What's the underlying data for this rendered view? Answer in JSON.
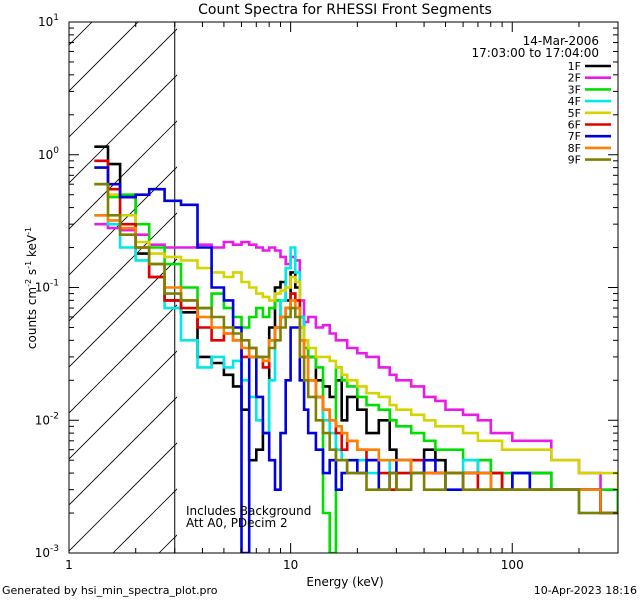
{
  "footer": {
    "generated": "Generated by hsi_min_spectra_plot.pro",
    "date": "10-Apr-2023 18:16"
  },
  "annotations": {
    "date": "14-Mar-2006",
    "time_range": "17:03:00 to 17:04:00",
    "background_note": "Includes Background",
    "atten_note": "Att A0, PDecim 2"
  },
  "chart_data": {
    "type": "line",
    "title": "Count Spectra for RHESSI Front Segments",
    "xlabel": "Energy (keV)",
    "ylabel": "counts cm-2 s-1 keV-1",
    "x_scale": "log",
    "y_scale": "log",
    "xlim": [
      1,
      300
    ],
    "ylim": [
      0.001,
      10
    ],
    "x_ticks": [
      1,
      10,
      100
    ],
    "y_ticks": [
      0.001,
      0.01,
      0.1,
      1,
      10
    ],
    "hatched_region": [
      1,
      3
    ],
    "legend_position": "top-right",
    "series": [
      {
        "name": "1F",
        "color": "#000000",
        "x": [
          1.3,
          1.5,
          1.7,
          2,
          2.3,
          2.7,
          3.2,
          3.8,
          4.4,
          5,
          5.5,
          6,
          6.5,
          7,
          7.5,
          8,
          8.5,
          9,
          9.5,
          10,
          10.5,
          11,
          11.5,
          12,
          13,
          14,
          15,
          16,
          17,
          18,
          20,
          22,
          25,
          28,
          30,
          35,
          40,
          45,
          50,
          60,
          70,
          80,
          90,
          100,
          120,
          150,
          180,
          200,
          250,
          300
        ],
        "y": [
          1.15,
          0.85,
          0.48,
          0.18,
          0.12,
          0.08,
          0.065,
          0.03,
          0.027,
          0.022,
          0.018,
          0.012,
          0.005,
          0.006,
          0.008,
          0.05,
          0.1,
          0.11,
          0.08,
          0.13,
          0.1,
          0.06,
          0.04,
          0.03,
          0.02,
          0.018,
          0.015,
          0.02,
          0.01,
          0.015,
          0.012,
          0.008,
          0.01,
          0.006,
          0.005,
          0.004,
          0.006,
          0.005,
          0.004,
          0.004,
          0.005,
          0.004,
          0.003,
          0.004,
          0.004,
          0.003,
          0.003,
          0.003,
          0.002,
          0.003
        ]
      },
      {
        "name": "2F",
        "color": "#e81ce8",
        "x": [
          1.3,
          1.5,
          1.7,
          2,
          2.3,
          2.7,
          3.2,
          3.8,
          4.4,
          5,
          5.5,
          6,
          6.5,
          7,
          7.5,
          8,
          8.5,
          9,
          9.5,
          10,
          10.5,
          11,
          11.5,
          12,
          13,
          14,
          15,
          16,
          17,
          18,
          20,
          22,
          25,
          28,
          30,
          35,
          40,
          45,
          50,
          60,
          70,
          80,
          90,
          100,
          120,
          150,
          180,
          200,
          250,
          300
        ],
        "y": [
          0.3,
          0.28,
          0.27,
          0.25,
          0.21,
          0.2,
          0.2,
          0.21,
          0.2,
          0.22,
          0.21,
          0.22,
          0.21,
          0.2,
          0.19,
          0.2,
          0.19,
          0.17,
          0.15,
          0.17,
          0.16,
          0.08,
          0.055,
          0.06,
          0.05,
          0.052,
          0.045,
          0.04,
          0.04,
          0.035,
          0.032,
          0.03,
          0.025,
          0.022,
          0.02,
          0.018,
          0.015,
          0.014,
          0.012,
          0.011,
          0.01,
          0.008,
          0.008,
          0.007,
          0.007,
          0.005,
          0.005,
          0.004,
          0.003,
          0.003
        ]
      },
      {
        "name": "3F",
        "color": "#00e000",
        "x": [
          1.3,
          1.5,
          1.7,
          2,
          2.3,
          2.7,
          3.2,
          3.8,
          4.4,
          5,
          5.5,
          6,
          6.5,
          7,
          7.5,
          8,
          8.5,
          9,
          9.5,
          10,
          10.5,
          11,
          11.5,
          12,
          13,
          14,
          15,
          16,
          17,
          18,
          20,
          22,
          25,
          28,
          30,
          35,
          40,
          45,
          50,
          60,
          70,
          80,
          90,
          100,
          120,
          150,
          180,
          200,
          250,
          300
        ],
        "y": [
          0.6,
          0.48,
          0.5,
          0.3,
          0.2,
          0.15,
          0.1,
          0.07,
          0.09,
          0.07,
          0.06,
          0.05,
          0.06,
          0.07,
          0.06,
          0.07,
          0.08,
          0.06,
          0.07,
          0.09,
          0.07,
          0.05,
          0.035,
          0.03,
          0.025,
          0.002,
          0.001,
          0.025,
          0.02,
          0.018,
          0.015,
          0.013,
          0.012,
          0.01,
          0.009,
          0.008,
          0.007,
          0.006,
          0.006,
          0.005,
          0.005,
          0.004,
          0.004,
          0.004,
          0.004,
          0.003,
          0.003,
          0.003,
          0.003,
          0.002
        ]
      },
      {
        "name": "4F",
        "color": "#00e8e8",
        "x": [
          1.3,
          1.5,
          1.7,
          2,
          2.3,
          2.7,
          3.2,
          3.8,
          4.4,
          5,
          5.5,
          6,
          6.5,
          7,
          7.5,
          8,
          8.5,
          9,
          9.5,
          10,
          10.5,
          11,
          11.5,
          12,
          13,
          14,
          15,
          16,
          17,
          18,
          20,
          22,
          25,
          28,
          30,
          35,
          40,
          45,
          50,
          60,
          70,
          80,
          90,
          100,
          120,
          150,
          180,
          200,
          250,
          300
        ],
        "y": [
          0.35,
          0.3,
          0.2,
          0.16,
          0.15,
          0.07,
          0.04,
          0.025,
          0.03,
          0.025,
          0.028,
          0.02,
          0.015,
          0.01,
          0.008,
          0.02,
          0.05,
          0.08,
          0.14,
          0.2,
          0.13,
          0.06,
          0.03,
          0.02,
          0.015,
          0.01,
          0.008,
          0.006,
          0.005,
          0.004,
          0.005,
          0.004,
          0.005,
          0.003,
          0.004,
          0.005,
          0.004,
          0.004,
          0.004,
          0.005,
          0.004,
          0.003,
          0.003,
          0.004,
          0.003,
          0.003,
          0.003,
          0.002,
          0.002,
          0.002
        ]
      },
      {
        "name": "5F",
        "color": "#d4d400",
        "x": [
          1.3,
          1.5,
          1.7,
          2,
          2.3,
          2.7,
          3.2,
          3.8,
          4.4,
          5,
          5.5,
          6,
          6.5,
          7,
          7.5,
          8,
          8.5,
          9,
          9.5,
          10,
          10.5,
          11,
          11.5,
          12,
          13,
          14,
          15,
          16,
          17,
          18,
          20,
          22,
          25,
          28,
          30,
          35,
          40,
          45,
          50,
          60,
          70,
          80,
          90,
          100,
          120,
          150,
          180,
          200,
          250,
          300
        ],
        "y": [
          0.8,
          0.5,
          0.35,
          0.22,
          0.18,
          0.17,
          0.16,
          0.14,
          0.13,
          0.12,
          0.13,
          0.11,
          0.1,
          0.09,
          0.085,
          0.08,
          0.09,
          0.095,
          0.1,
          0.12,
          0.11,
          0.05,
          0.04,
          0.035,
          0.03,
          0.03,
          0.028,
          0.025,
          0.022,
          0.02,
          0.018,
          0.016,
          0.015,
          0.013,
          0.012,
          0.011,
          0.01,
          0.009,
          0.009,
          0.008,
          0.007,
          0.007,
          0.006,
          0.006,
          0.006,
          0.005,
          0.005,
          0.004,
          0.004,
          0.003
        ]
      },
      {
        "name": "6F",
        "color": "#e00000",
        "x": [
          1.3,
          1.5,
          1.7,
          2,
          2.3,
          2.7,
          3.2,
          3.8,
          4.4,
          5,
          5.5,
          6,
          6.5,
          7,
          7.5,
          8,
          8.5,
          9,
          9.5,
          10,
          10.5,
          11,
          11.5,
          12,
          13,
          14,
          15,
          16,
          17,
          18,
          20,
          22,
          25,
          28,
          30,
          35,
          40,
          45,
          50,
          60,
          70,
          80,
          90,
          100,
          120,
          150,
          180,
          200,
          250,
          300
        ],
        "y": [
          0.9,
          0.55,
          0.3,
          0.2,
          0.12,
          0.08,
          0.07,
          0.05,
          0.04,
          0.045,
          0.04,
          0.03,
          0.035,
          0.03,
          0.025,
          0.04,
          0.05,
          0.06,
          0.07,
          0.09,
          0.08,
          0.04,
          0.03,
          0.02,
          0.015,
          0.012,
          0.01,
          0.008,
          0.006,
          0.007,
          0.006,
          0.005,
          0.004,
          0.003,
          0.004,
          0.005,
          0.004,
          0.004,
          0.004,
          0.004,
          0.003,
          0.004,
          0.003,
          0.003,
          0.003,
          0.003,
          0.003,
          0.003,
          0.002,
          0.002
        ]
      },
      {
        "name": "7F",
        "color": "#0000e0",
        "x": [
          1.3,
          1.5,
          1.7,
          2,
          2.3,
          2.7,
          3.2,
          3.8,
          4.4,
          5,
          5.5,
          6,
          6.5,
          7,
          7.5,
          8,
          8.5,
          9,
          9.5,
          10,
          10.5,
          11,
          11.5,
          12,
          13,
          14,
          15,
          16,
          17,
          18,
          20,
          22,
          25,
          28,
          30,
          35,
          40,
          45,
          50,
          60,
          70,
          80,
          90,
          100,
          120,
          150,
          180,
          200,
          250,
          300
        ],
        "y": [
          0.8,
          0.6,
          0.48,
          0.5,
          0.55,
          0.45,
          0.42,
          0.2,
          0.1,
          0.08,
          0.05,
          0.001,
          0.03,
          0.015,
          0.008,
          0.005,
          0.003,
          0.008,
          0.02,
          0.05,
          0.05,
          0.02,
          0.012,
          0.008,
          0.006,
          0.004,
          0.005,
          0.003,
          0.004,
          0.005,
          0.004,
          0.005,
          0.003,
          0.004,
          0.005,
          0.004,
          0.005,
          0.004,
          0.003,
          0.004,
          0.004,
          0.003,
          0.003,
          0.004,
          0.003,
          0.003,
          0.003,
          0.003,
          0.002,
          0.002
        ]
      },
      {
        "name": "8F",
        "color": "#ff8000",
        "x": [
          1.3,
          1.5,
          1.7,
          2,
          2.3,
          2.7,
          3.2,
          3.8,
          4.4,
          5,
          5.5,
          6,
          6.5,
          7,
          7.5,
          8,
          8.5,
          9,
          9.5,
          10,
          10.5,
          11,
          11.5,
          12,
          13,
          14,
          15,
          16,
          17,
          18,
          20,
          22,
          25,
          28,
          30,
          35,
          40,
          45,
          50,
          60,
          70,
          80,
          90,
          100,
          120,
          150,
          180,
          200,
          250,
          300
        ],
        "y": [
          0.35,
          0.32,
          0.28,
          0.2,
          0.15,
          0.1,
          0.08,
          0.06,
          0.05,
          0.045,
          0.04,
          0.035,
          0.03,
          0.03,
          0.028,
          0.04,
          0.05,
          0.06,
          0.07,
          0.08,
          0.07,
          0.04,
          0.03,
          0.02,
          0.015,
          0.012,
          0.01,
          0.009,
          0.008,
          0.007,
          0.006,
          0.006,
          0.005,
          0.005,
          0.005,
          0.004,
          0.004,
          0.004,
          0.004,
          0.004,
          0.004,
          0.003,
          0.003,
          0.003,
          0.003,
          0.003,
          0.003,
          0.003,
          0.002,
          0.002
        ]
      },
      {
        "name": "9F",
        "color": "#808000",
        "x": [
          1.3,
          1.5,
          1.7,
          2,
          2.3,
          2.7,
          3.2,
          3.8,
          4.4,
          5,
          5.5,
          6,
          6.5,
          7,
          7.5,
          8,
          8.5,
          9,
          9.5,
          10,
          10.5,
          11,
          11.5,
          12,
          13,
          14,
          15,
          16,
          17,
          18,
          20,
          22,
          25,
          28,
          30,
          35,
          40,
          45,
          50,
          60,
          70,
          80,
          90,
          100,
          120,
          150,
          180,
          200,
          250,
          300
        ],
        "y": [
          0.6,
          0.35,
          0.25,
          0.2,
          0.15,
          0.09,
          0.08,
          0.07,
          0.06,
          0.05,
          0.045,
          0.04,
          0.035,
          0.03,
          0.03,
          0.035,
          0.04,
          0.05,
          0.06,
          0.07,
          0.06,
          0.03,
          0.02,
          0.015,
          0.01,
          0.008,
          0.006,
          0.005,
          0.005,
          0.004,
          0.004,
          0.003,
          0.003,
          0.004,
          0.003,
          0.004,
          0.003,
          0.003,
          0.004,
          0.003,
          0.003,
          0.003,
          0.003,
          0.003,
          0.003,
          0.003,
          0.003,
          0.002,
          0.002,
          0.002
        ]
      }
    ]
  }
}
